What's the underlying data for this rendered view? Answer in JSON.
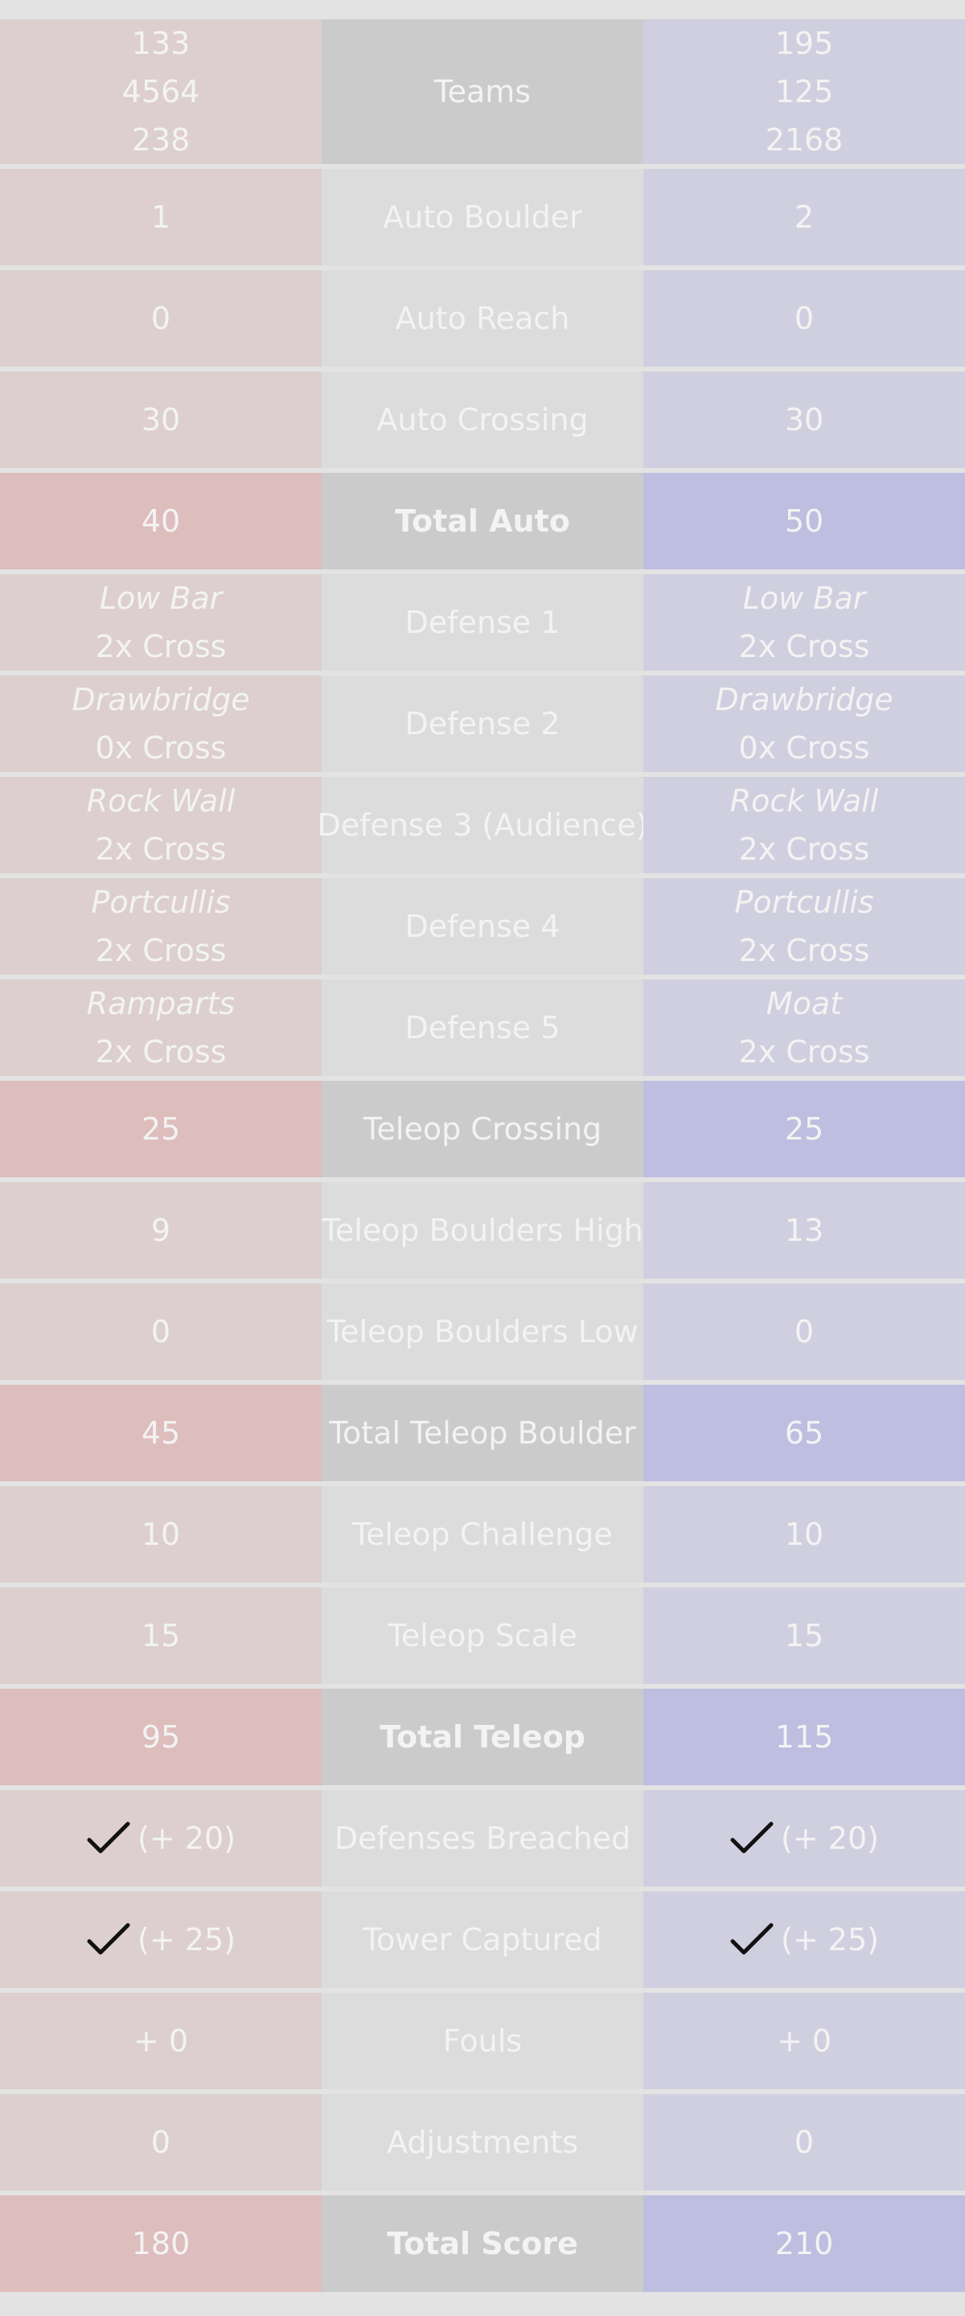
{
  "teams": {
    "label": "Teams",
    "red": [
      "133",
      "4564",
      "238"
    ],
    "blue": [
      "195",
      "125",
      "2168"
    ]
  },
  "rows": [
    {
      "key": "auto-boulder",
      "label": "Auto Boulder",
      "red": "1",
      "blue": "2",
      "type": "std"
    },
    {
      "key": "auto-reach",
      "label": "Auto Reach",
      "red": "0",
      "blue": "0",
      "type": "std"
    },
    {
      "key": "auto-crossing",
      "label": "Auto Crossing",
      "red": "30",
      "blue": "30",
      "type": "std"
    },
    {
      "key": "total-auto",
      "label": "Total Auto",
      "red": "40",
      "blue": "50",
      "type": "total-bold"
    },
    {
      "key": "defense-1",
      "label": "Defense 1",
      "red": {
        "name": "Low Bar",
        "count": "2x Cross"
      },
      "blue": {
        "name": "Low Bar",
        "count": "2x Cross"
      },
      "type": "defense"
    },
    {
      "key": "defense-2",
      "label": "Defense 2",
      "red": {
        "name": "Drawbridge",
        "count": "0x Cross"
      },
      "blue": {
        "name": "Drawbridge",
        "count": "0x Cross"
      },
      "type": "defense"
    },
    {
      "key": "defense-3",
      "label": "Defense 3 (Audience)",
      "red": {
        "name": "Rock Wall",
        "count": "2x Cross"
      },
      "blue": {
        "name": "Rock Wall",
        "count": "2x Cross"
      },
      "type": "defense"
    },
    {
      "key": "defense-4",
      "label": "Defense 4",
      "red": {
        "name": "Portcullis",
        "count": "2x Cross"
      },
      "blue": {
        "name": "Portcullis",
        "count": "2x Cross"
      },
      "type": "defense"
    },
    {
      "key": "defense-5",
      "label": "Defense 5",
      "red": {
        "name": "Ramparts",
        "count": "2x Cross"
      },
      "blue": {
        "name": "Moat",
        "count": "2x Cross"
      },
      "type": "defense"
    },
    {
      "key": "teleop-crossing",
      "label": "Teleop Crossing",
      "red": "25",
      "blue": "25",
      "type": "total"
    },
    {
      "key": "teleop-boulders-high",
      "label": "Teleop Boulders High",
      "red": "9",
      "blue": "13",
      "type": "std"
    },
    {
      "key": "teleop-boulders-low",
      "label": "Teleop Boulders Low",
      "red": "0",
      "blue": "0",
      "type": "std"
    },
    {
      "key": "total-teleop-boulder",
      "label": "Total Teleop Boulder",
      "red": "45",
      "blue": "65",
      "type": "total"
    },
    {
      "key": "teleop-challenge",
      "label": "Teleop Challenge",
      "red": "10",
      "blue": "10",
      "type": "std"
    },
    {
      "key": "teleop-scale",
      "label": "Teleop Scale",
      "red": "15",
      "blue": "15",
      "type": "std"
    },
    {
      "key": "total-teleop",
      "label": "Total Teleop",
      "red": "95",
      "blue": "115",
      "type": "total-bold"
    },
    {
      "key": "defenses-breached",
      "label": "Defenses Breached",
      "red": "(+ 20)",
      "blue": "(+ 20)",
      "type": "check"
    },
    {
      "key": "tower-captured",
      "label": "Tower Captured",
      "red": "(+ 25)",
      "blue": "(+ 25)",
      "type": "check"
    },
    {
      "key": "fouls",
      "label": "Fouls",
      "red": "+ 0",
      "blue": "+ 0",
      "type": "std"
    },
    {
      "key": "adjustments",
      "label": "Adjustments",
      "red": "0",
      "blue": "0",
      "type": "std"
    },
    {
      "key": "total-score",
      "label": "Total Score",
      "red": "180",
      "blue": "210",
      "type": "total-bold"
    }
  ],
  "icons": {
    "check": "check-icon"
  },
  "colors": {
    "red_cell": "#ddcfcf",
    "red_total": "#debdbd",
    "blue_cell": "#d0cfdf",
    "blue_total": "#bebee0",
    "label_cell": "#dcdcdc",
    "label_total": "#cbcbcb",
    "text": "#f3f3f3"
  }
}
